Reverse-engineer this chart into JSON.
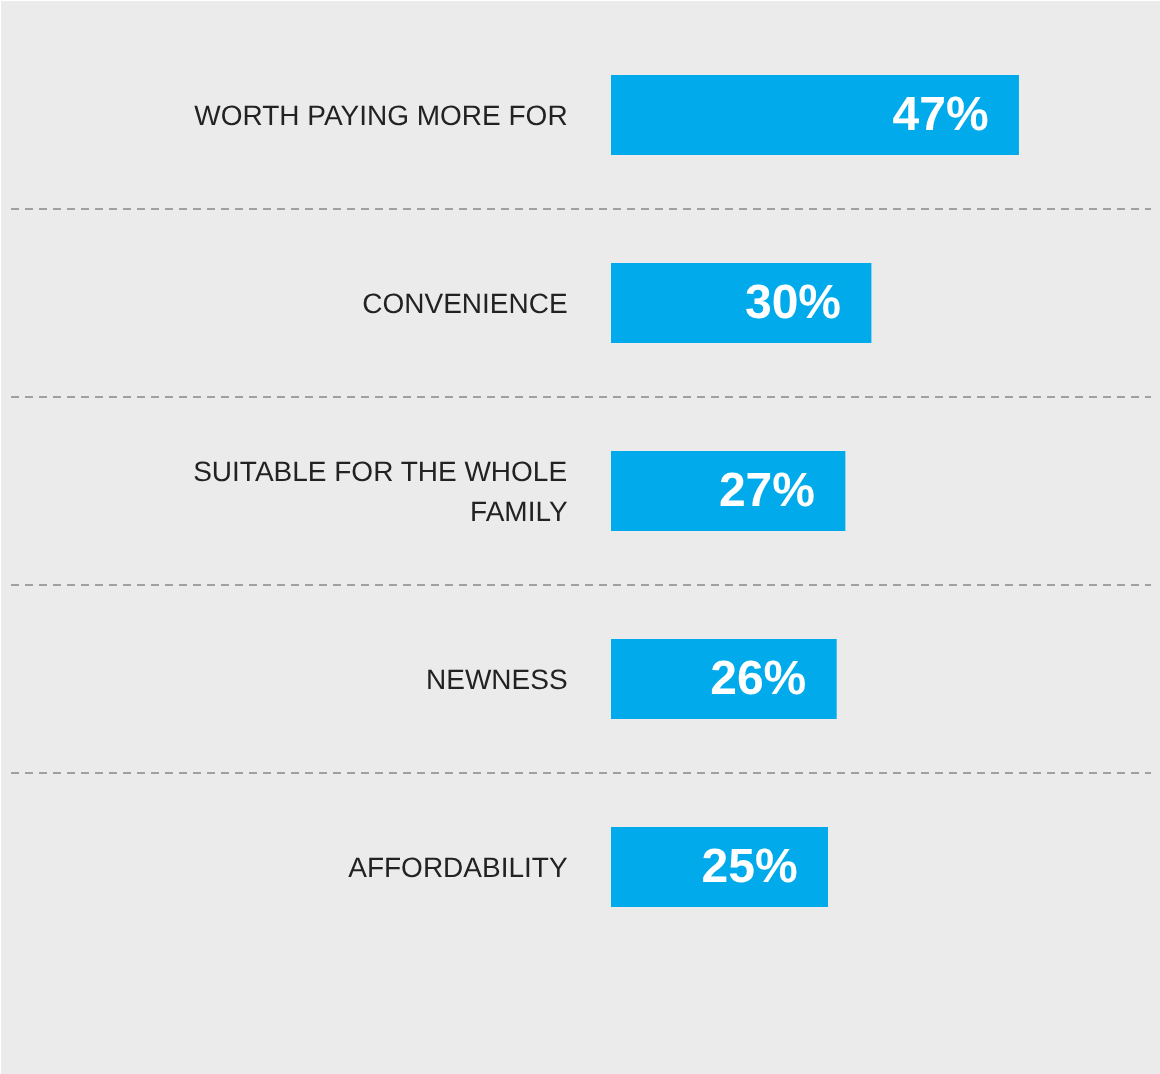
{
  "chart_data": {
    "type": "bar",
    "orientation": "horizontal",
    "categories": [
      "WORTH PAYING MORE FOR",
      "CONVENIENCE",
      "SUITABLE FOR THE WHOLE FAMILY",
      "NEWNESS",
      "AFFORDABILITY"
    ],
    "values": [
      47,
      30,
      27,
      26,
      25
    ],
    "value_labels": [
      "47%",
      "30%",
      "27%",
      "26%",
      "25%"
    ],
    "color": "#00aaeb",
    "grid": "y"
  }
}
